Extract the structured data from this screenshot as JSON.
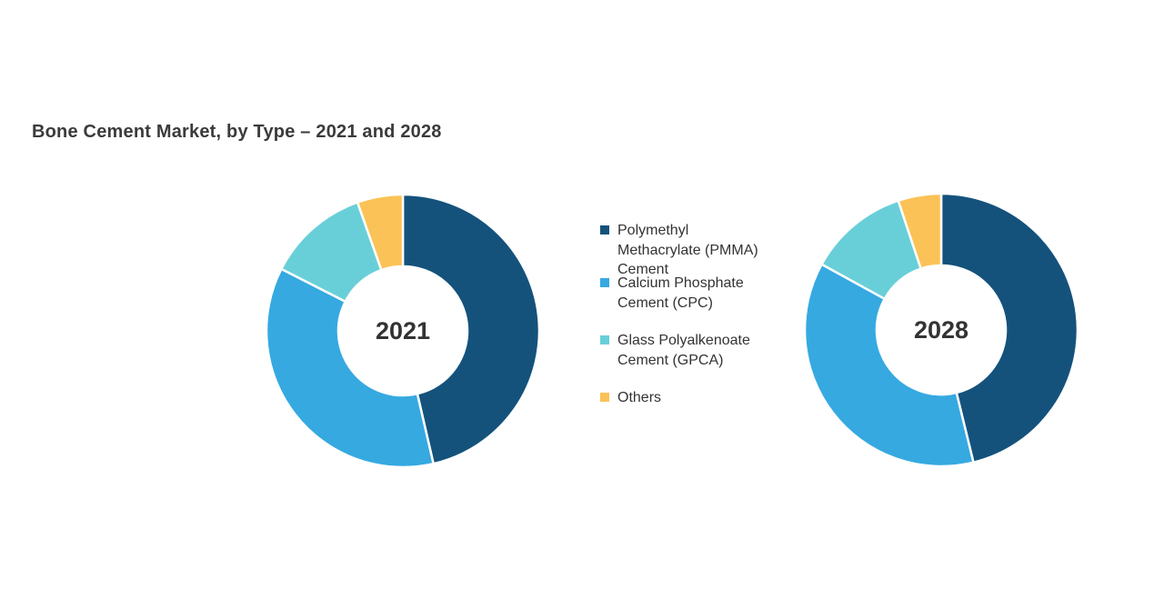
{
  "title": "Bone Cement Market, by Type – 2021 and 2028",
  "colors": {
    "pmma": "#14527C",
    "cpc": "#36A9E1",
    "gpca": "#68CFD8",
    "others": "#FBC257",
    "title_text": "#3B3B3B",
    "label_text": "#333333",
    "background": "#FFFFFF",
    "slice_separator": "#FFFFFF"
  },
  "legend": {
    "items": [
      {
        "id": "pmma",
        "label": "Polymethyl Methacrylate (PMMA) Cement",
        "lines": [
          "Polymethyl",
          "Methacrylate  (PMMA)",
          "Cement"
        ],
        "color": "#14527C"
      },
      {
        "id": "cpc",
        "label": "Calcium Phosphate Cement (CPC)",
        "lines": [
          "Calcium Phosphate",
          "Cement (CPC)"
        ],
        "color": "#36A9E1"
      },
      {
        "id": "gpca",
        "label": "Glass Polyalkenoate Cement (GPCA)",
        "lines": [
          "Glass Polyalkenoate",
          "Cement (GPCA)"
        ],
        "color": "#68CFD8"
      },
      {
        "id": "others",
        "label": "Others",
        "lines": [
          "Others"
        ],
        "color": "#FBC257"
      }
    ]
  },
  "chart_data": [
    {
      "type": "pie",
      "subtype": "donut",
      "center_label": "2021",
      "categories": [
        "Polymethyl Methacrylate (PMMA) Cement",
        "Calcium Phosphate Cement (CPC)",
        "Glass Polyalkenoate Cement (GPCA)",
        "Others"
      ],
      "ids": [
        "pmma",
        "cpc",
        "gpca",
        "others"
      ],
      "values": [
        46.4,
        36.1,
        12.1,
        5.4
      ],
      "note": "% share estimated from arc angles; no numeric data labels shown in figure",
      "colors": [
        "#14527C",
        "#36A9E1",
        "#68CFD8",
        "#FBC257"
      ],
      "start_angle_deg": 0,
      "direction": "clockwise",
      "outer_radius_px": 150,
      "inner_radius_px": 71,
      "legend_position": "right-of-chart"
    },
    {
      "type": "pie",
      "subtype": "donut",
      "center_label": "2028",
      "categories": [
        "Polymethyl Methacrylate (PMMA) Cement",
        "Calcium Phosphate Cement (CPC)",
        "Glass Polyalkenoate Cement (GPCA)",
        "Others"
      ],
      "ids": [
        "pmma",
        "cpc",
        "gpca",
        "others"
      ],
      "values": [
        46.2,
        36.8,
        11.9,
        5.1
      ],
      "note": "% share estimated from arc angles; no numeric data labels shown in figure",
      "colors": [
        "#14527C",
        "#36A9E1",
        "#68CFD8",
        "#FBC257"
      ],
      "start_angle_deg": 0,
      "direction": "clockwise",
      "outer_radius_px": 150,
      "inner_radius_px": 71,
      "legend_position": "left-of-chart"
    }
  ]
}
